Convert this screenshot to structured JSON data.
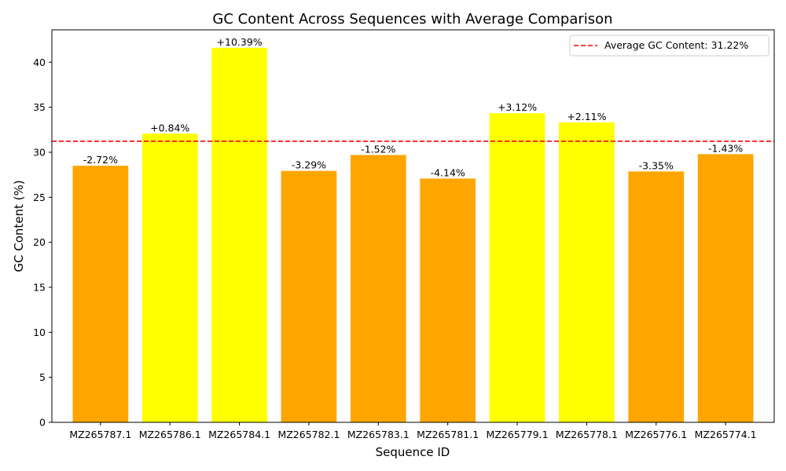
{
  "chart_data": {
    "type": "bar",
    "title": "GC Content Across Sequences with Average Comparison",
    "xlabel": "Sequence ID",
    "ylabel": "GC Content (%)",
    "ylim": [
      0,
      43.6
    ],
    "yticks": [
      0,
      5,
      10,
      15,
      20,
      25,
      30,
      35,
      40
    ],
    "categories": [
      "MZ265787.1",
      "MZ265786.1",
      "MZ265784.1",
      "MZ265782.1",
      "MZ265783.1",
      "MZ265781.1",
      "MZ265779.1",
      "MZ265778.1",
      "MZ265776.1",
      "MZ265774.1"
    ],
    "values": [
      28.5,
      32.06,
      41.61,
      27.93,
      29.7,
      27.08,
      34.34,
      33.33,
      27.87,
      29.79
    ],
    "data_labels": [
      "-2.72%",
      "+0.84%",
      "+10.39%",
      "-3.29%",
      "-1.52%",
      "-4.14%",
      "+3.12%",
      "+2.11%",
      "-3.35%",
      "-1.43%"
    ],
    "average": 31.22,
    "average_label": "Average GC Content: 31.22%",
    "colors": {
      "above_average": "#ffff00",
      "below_average": "#ffa500",
      "average_line": "#ff0000"
    },
    "legend_placement": "top-right",
    "grid": false
  }
}
